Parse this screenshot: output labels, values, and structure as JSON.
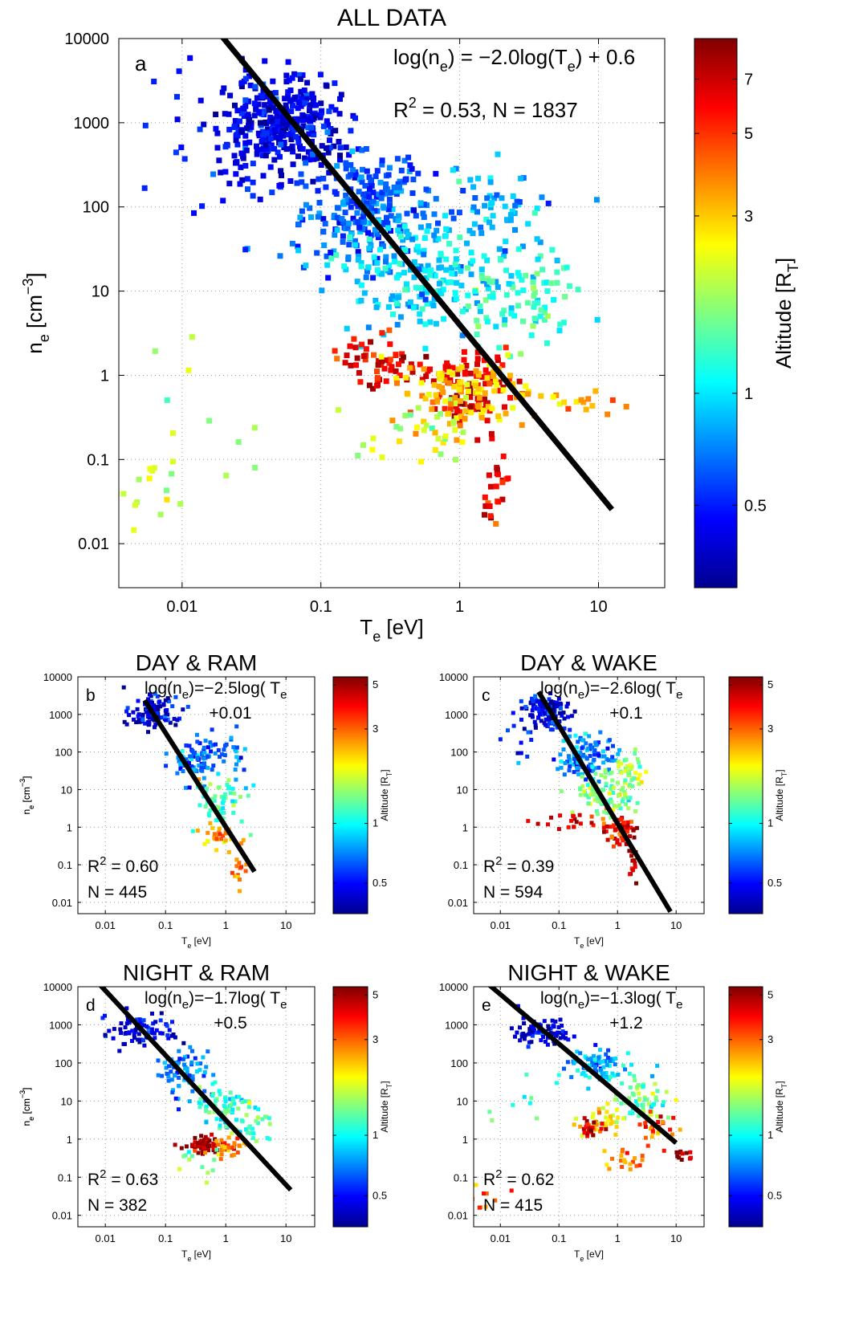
{
  "figure": {
    "colormap": [
      "#00008f",
      "#0000ff",
      "#0080ff",
      "#00ffff",
      "#80ff80",
      "#ffff00",
      "#ff8000",
      "#ff0000",
      "#800000"
    ],
    "fit_line_color": "#000000",
    "marker_shape": "square"
  },
  "chart_data": [
    {
      "type": "scatter",
      "panel_letter": "a",
      "title": "ALL DATA",
      "xlabel": "T",
      "xlabel_sub": "e",
      "xlabel_unit": "[eV]",
      "ylabel": "n",
      "ylabel_sub": "e",
      "ylabel_unit": "[cm",
      "ylabel_sup": "−3",
      "ylabel_close": "]",
      "x_scale": "log",
      "y_scale": "log",
      "xlim": [
        0.0035,
        30
      ],
      "ylim": [
        0.003,
        10000
      ],
      "xticks": [
        0.01,
        0.1,
        1,
        10
      ],
      "xtick_labels": [
        "0.01",
        "0.1",
        "1",
        "10"
      ],
      "yticks": [
        0.01,
        0.1,
        1,
        10,
        100,
        1000,
        10000
      ],
      "ytick_labels": [
        "0.01",
        "0.1",
        "1",
        "10",
        "100",
        "1000",
        "10000"
      ],
      "grid": true,
      "fit": {
        "slope": -2.0,
        "intercept": 0.6,
        "x_range": [
          0.019,
          12.5
        ]
      },
      "fit_text_1": "log(n",
      "fit_text_1_sub": "e",
      "fit_text_1_rest": ") = −2.0log(T",
      "fit_text_1_sub2": "e",
      "fit_text_1_end": ") + 0.6",
      "r2_label": "R",
      "r2_sup": "2",
      "r2_value": "= 0.53, N = 1837",
      "colorbar": {
        "label": "Altitude [R",
        "label_sub": "T",
        "label_close": "]",
        "scale": "log",
        "range": [
          0.3,
          9
        ],
        "ticks": [
          0.5,
          1,
          3,
          5,
          7
        ],
        "tick_labels": [
          "0.5",
          "1",
          "3",
          "5",
          "7"
        ]
      },
      "clusters": [
        {
          "x": 0.05,
          "y": 1000,
          "spread_x": 0.22,
          "spread_y": 0.28,
          "count": 360,
          "alt": 0.42
        },
        {
          "x": 0.2,
          "y": 100,
          "spread_x": 0.25,
          "spread_y": 0.33,
          "count": 260,
          "alt": 0.62
        },
        {
          "x": 0.55,
          "y": 15,
          "spread_x": 0.3,
          "spread_y": 0.35,
          "count": 200,
          "alt": 0.95
        },
        {
          "x": 1.6,
          "y": 100,
          "spread_x": 0.22,
          "spread_y": 0.25,
          "count": 60,
          "alt": 0.8
        },
        {
          "x": 2.5,
          "y": 8,
          "spread_x": 0.25,
          "spread_y": 0.3,
          "count": 90,
          "alt": 1.3
        },
        {
          "x": 0.3,
          "y": 1.5,
          "spread_x": 0.2,
          "spread_y": 0.15,
          "count": 60,
          "alt": 6.0
        },
        {
          "x": 1.3,
          "y": 0.7,
          "spread_x": 0.15,
          "spread_y": 0.2,
          "count": 90,
          "alt": 6.5
        },
        {
          "x": 1.0,
          "y": 0.6,
          "spread_x": 0.28,
          "spread_y": 0.2,
          "count": 120,
          "alt": 3.0
        },
        {
          "x": 1.8,
          "y": 0.05,
          "spread_x": 0.05,
          "spread_y": 0.35,
          "count": 25,
          "alt": 6.0
        },
        {
          "x": 0.6,
          "y": 0.2,
          "spread_x": 0.2,
          "spread_y": 0.2,
          "count": 30,
          "alt": 2.2
        },
        {
          "x": 8.0,
          "y": 0.45,
          "spread_x": 0.12,
          "spread_y": 0.1,
          "count": 12,
          "alt": 3.5
        },
        {
          "x": 0.02,
          "y": 0.5,
          "spread_x": 0.3,
          "spread_y": 0.6,
          "count": 10,
          "alt": 1.8
        },
        {
          "x": 0.005,
          "y": 0.04,
          "spread_x": 0.25,
          "spread_y": 0.25,
          "count": 20,
          "alt": 2.0
        },
        {
          "x": 0.015,
          "y": 300,
          "spread_x": 0.3,
          "spread_y": 0.5,
          "count": 30,
          "alt": 0.45
        }
      ]
    },
    {
      "type": "scatter",
      "panel_letter": "b",
      "title": "DAY & RAM",
      "xlabel": "T",
      "xlabel_sub": "e",
      "xlabel_unit": "[eV]",
      "ylabel": "n",
      "ylabel_sub": "e",
      "ylabel_unit": "[cm",
      "ylabel_sup": "−3",
      "ylabel_close": "]",
      "x_scale": "log",
      "y_scale": "log",
      "xlim": [
        0.0035,
        30
      ],
      "ylim": [
        0.005,
        10000
      ],
      "xticks": [
        0.01,
        0.1,
        1,
        10
      ],
      "xtick_labels": [
        "0.01",
        "0.1",
        "1",
        "10"
      ],
      "yticks": [
        0.01,
        0.1,
        1,
        10,
        100,
        1000,
        10000
      ],
      "ytick_labels": [
        "0.01",
        "0.1",
        "1",
        "10",
        "100",
        "1000",
        "10000"
      ],
      "grid": true,
      "fit": {
        "slope": -2.5,
        "intercept": 0.01,
        "x_range": [
          0.045,
          3.0
        ]
      },
      "fit_text_1": "log(n",
      "fit_text_1_sub": "e",
      "fit_text_1_rest": ")=−2.5log( T",
      "fit_text_1_sub2": "e",
      "fit_text_2": "+0.01",
      "r2_label": "R",
      "r2_sup": "2",
      "r2_value": "= 0.60",
      "n_text": "N = 445",
      "colorbar": {
        "label": "Altitude [R",
        "label_sub": "T",
        "label_close": "]",
        "scale": "log",
        "range": [
          0.35,
          5.5
        ],
        "ticks": [
          0.5,
          1,
          3,
          5
        ],
        "tick_labels": [
          "0.5",
          "1",
          "3",
          "5"
        ]
      },
      "clusters": [
        {
          "x": 0.06,
          "y": 1200,
          "spread_x": 0.2,
          "spread_y": 0.2,
          "count": 120,
          "alt": 0.45
        },
        {
          "x": 0.3,
          "y": 60,
          "spread_x": 0.2,
          "spread_y": 0.3,
          "count": 80,
          "alt": 0.65
        },
        {
          "x": 0.8,
          "y": 5,
          "spread_x": 0.2,
          "spread_y": 0.3,
          "count": 60,
          "alt": 1.2
        },
        {
          "x": 1.3,
          "y": 80,
          "spread_x": 0.15,
          "spread_y": 0.35,
          "count": 25,
          "alt": 0.7
        },
        {
          "x": 0.8,
          "y": 0.5,
          "spread_x": 0.15,
          "spread_y": 0.2,
          "count": 30,
          "alt": 2.5
        },
        {
          "x": 1.6,
          "y": 0.08,
          "spread_x": 0.05,
          "spread_y": 0.3,
          "count": 15,
          "alt": 3.0
        }
      ]
    },
    {
      "type": "scatter",
      "panel_letter": "c",
      "title": "DAY & WAKE",
      "xlabel": "T",
      "xlabel_sub": "e",
      "xlabel_unit": "[eV]",
      "ylabel": "n",
      "ylabel_sub": "e",
      "ylabel_unit": "[cm",
      "ylabel_sup": "−3",
      "ylabel_close": "]",
      "x_scale": "log",
      "y_scale": "log",
      "xlim": [
        0.0035,
        30
      ],
      "ylim": [
        0.005,
        10000
      ],
      "xticks": [
        0.01,
        0.1,
        1,
        10
      ],
      "xtick_labels": [
        "0.01",
        "0.1",
        "1",
        "10"
      ],
      "yticks": [
        0.01,
        0.1,
        1,
        10,
        100,
        1000,
        10000
      ],
      "ytick_labels": [
        "0.01",
        "0.1",
        "1",
        "10",
        "100",
        "1000",
        "10000"
      ],
      "grid": true,
      "fit": {
        "slope": -2.6,
        "intercept": 0.1,
        "x_range": [
          0.045,
          8.0
        ]
      },
      "fit_text_1": "log(n",
      "fit_text_1_sub": "e",
      "fit_text_1_rest": ")=−2.6log( T",
      "fit_text_1_sub2": "e",
      "fit_text_2": "+0.1",
      "r2_label": "R",
      "r2_sup": "2",
      "r2_value": "= 0.39",
      "n_text": "N = 594",
      "colorbar": {
        "label": "Altitude [R",
        "label_sub": "T",
        "label_close": "]",
        "scale": "log",
        "range": [
          0.35,
          5.5
        ],
        "ticks": [
          0.5,
          1,
          3,
          5
        ],
        "tick_labels": [
          "0.5",
          "1",
          "3",
          "5"
        ]
      },
      "clusters": [
        {
          "x": 0.06,
          "y": 1200,
          "spread_x": 0.2,
          "spread_y": 0.2,
          "count": 110,
          "alt": 0.45
        },
        {
          "x": 0.3,
          "y": 80,
          "spread_x": 0.25,
          "spread_y": 0.3,
          "count": 110,
          "alt": 0.7
        },
        {
          "x": 0.6,
          "y": 8,
          "spread_x": 0.25,
          "spread_y": 0.3,
          "count": 100,
          "alt": 1.4
        },
        {
          "x": 1.5,
          "y": 30,
          "spread_x": 0.15,
          "spread_y": 0.25,
          "count": 40,
          "alt": 1.6
        },
        {
          "x": 1.0,
          "y": 0.8,
          "spread_x": 0.15,
          "spread_y": 0.2,
          "count": 60,
          "alt": 4.0
        },
        {
          "x": 1.8,
          "y": 0.1,
          "spread_x": 0.05,
          "spread_y": 0.3,
          "count": 15,
          "alt": 5.0
        },
        {
          "x": 0.15,
          "y": 1.5,
          "spread_x": 0.3,
          "spread_y": 0.15,
          "count": 20,
          "alt": 4.0
        },
        {
          "x": 0.02,
          "y": 200,
          "spread_x": 0.3,
          "spread_y": 0.4,
          "count": 15,
          "alt": 0.5
        }
      ]
    },
    {
      "type": "scatter",
      "panel_letter": "d",
      "title": "NIGHT & RAM",
      "xlabel": "T",
      "xlabel_sub": "e",
      "xlabel_unit": "[eV]",
      "ylabel": "n",
      "ylabel_sub": "e",
      "ylabel_unit": "[cm",
      "ylabel_sup": "−3",
      "ylabel_close": "]",
      "x_scale": "log",
      "y_scale": "log",
      "xlim": [
        0.0035,
        30
      ],
      "ylim": [
        0.005,
        10000
      ],
      "xticks": [
        0.01,
        0.1,
        1,
        10
      ],
      "xtick_labels": [
        "0.01",
        "0.1",
        "1",
        "10"
      ],
      "yticks": [
        0.01,
        0.1,
        1,
        10,
        100,
        1000,
        10000
      ],
      "ytick_labels": [
        "0.01",
        "0.1",
        "1",
        "10",
        "100",
        "1000",
        "10000"
      ],
      "grid": true,
      "fit": {
        "slope": -1.7,
        "intercept": 0.5,
        "x_range": [
          0.008,
          12.0
        ]
      },
      "fit_text_1": "log(n",
      "fit_text_1_sub": "e",
      "fit_text_1_rest": ")=−1.7log( T",
      "fit_text_1_sub2": "e",
      "fit_text_2": "+0.5",
      "r2_label": "R",
      "r2_sup": "2",
      "r2_value": "= 0.63",
      "n_text": "N = 382",
      "colorbar": {
        "label": "Altitude [R",
        "label_sub": "T",
        "label_close": "]",
        "scale": "log",
        "range": [
          0.35,
          5.5
        ],
        "ticks": [
          0.5,
          1,
          3,
          5
        ],
        "tick_labels": [
          "0.5",
          "1",
          "3",
          "5"
        ]
      },
      "clusters": [
        {
          "x": 0.04,
          "y": 600,
          "spread_x": 0.25,
          "spread_y": 0.25,
          "count": 80,
          "alt": 0.45
        },
        {
          "x": 0.2,
          "y": 60,
          "spread_x": 0.25,
          "spread_y": 0.3,
          "count": 70,
          "alt": 0.7
        },
        {
          "x": 0.9,
          "y": 8,
          "spread_x": 0.25,
          "spread_y": 0.35,
          "count": 70,
          "alt": 1.1
        },
        {
          "x": 0.5,
          "y": 0.7,
          "spread_x": 0.2,
          "spread_y": 0.1,
          "count": 70,
          "alt": 5.0
        },
        {
          "x": 1.2,
          "y": 0.6,
          "spread_x": 0.15,
          "spread_y": 0.1,
          "count": 25,
          "alt": 2.5
        },
        {
          "x": 0.3,
          "y": 0.2,
          "spread_x": 0.2,
          "spread_y": 0.2,
          "count": 12,
          "alt": 1.5
        },
        {
          "x": 3.0,
          "y": 3,
          "spread_x": 0.2,
          "spread_y": 0.3,
          "count": 25,
          "alt": 1.2
        }
      ]
    },
    {
      "type": "scatter",
      "panel_letter": "e",
      "title": "NIGHT & WAKE",
      "xlabel": "T",
      "xlabel_sub": "e",
      "xlabel_unit": "[eV]",
      "ylabel": "n",
      "ylabel_sub": "e",
      "ylabel_unit": "[cm",
      "ylabel_sup": "−3",
      "ylabel_close": "]",
      "x_scale": "log",
      "y_scale": "log",
      "xlim": [
        0.0035,
        30
      ],
      "ylim": [
        0.005,
        10000
      ],
      "xticks": [
        0.01,
        0.1,
        1,
        10
      ],
      "xtick_labels": [
        "0.01",
        "0.1",
        "1",
        "10"
      ],
      "yticks": [
        0.01,
        0.1,
        1,
        10,
        100,
        1000,
        10000
      ],
      "ytick_labels": [
        "0.01",
        "0.1",
        "1",
        "10",
        "100",
        "1000",
        "10000"
      ],
      "grid": true,
      "fit": {
        "slope": -1.3,
        "intercept": 1.2,
        "x_range": [
          0.0045,
          10.0
        ]
      },
      "fit_text_1": "log(n",
      "fit_text_1_sub": "e",
      "fit_text_1_rest": ")=−1.3log( T",
      "fit_text_1_sub2": "e",
      "fit_text_2": "+1.2",
      "r2_label": "R",
      "r2_sup": "2",
      "r2_value": "= 0.62",
      "n_text": "N = 415",
      "colorbar": {
        "label": "Altitude [R",
        "label_sub": "T",
        "label_close": "]",
        "scale": "log",
        "range": [
          0.35,
          5.5
        ],
        "ticks": [
          0.5,
          1,
          3,
          5
        ],
        "tick_labels": [
          "0.5",
          "1",
          "3",
          "5"
        ]
      },
      "clusters": [
        {
          "x": 0.05,
          "y": 600,
          "spread_x": 0.2,
          "spread_y": 0.2,
          "count": 80,
          "alt": 0.45
        },
        {
          "x": 0.4,
          "y": 80,
          "spread_x": 0.3,
          "spread_y": 0.25,
          "count": 90,
          "alt": 0.8
        },
        {
          "x": 2.5,
          "y": 10,
          "spread_x": 0.25,
          "spread_y": 0.3,
          "count": 60,
          "alt": 1.3
        },
        {
          "x": 0.5,
          "y": 3,
          "spread_x": 0.2,
          "spread_y": 0.2,
          "count": 40,
          "alt": 2.2
        },
        {
          "x": 0.35,
          "y": 2,
          "spread_x": 0.1,
          "spread_y": 0.15,
          "count": 25,
          "alt": 5.0
        },
        {
          "x": 1.5,
          "y": 0.3,
          "spread_x": 0.2,
          "spread_y": 0.15,
          "count": 20,
          "alt": 2.8
        },
        {
          "x": 12.0,
          "y": 0.4,
          "spread_x": 0.12,
          "spread_y": 0.1,
          "count": 12,
          "alt": 5.0
        },
        {
          "x": 5.0,
          "y": 2,
          "spread_x": 0.15,
          "spread_y": 0.2,
          "count": 25,
          "alt": 3.0
        },
        {
          "x": 0.005,
          "y": 0.03,
          "spread_x": 0.2,
          "spread_y": 0.2,
          "count": 10,
          "alt": 3.0
        },
        {
          "x": 0.015,
          "y": 5,
          "spread_x": 0.3,
          "spread_y": 0.4,
          "count": 8,
          "alt": 1.2
        }
      ]
    }
  ]
}
